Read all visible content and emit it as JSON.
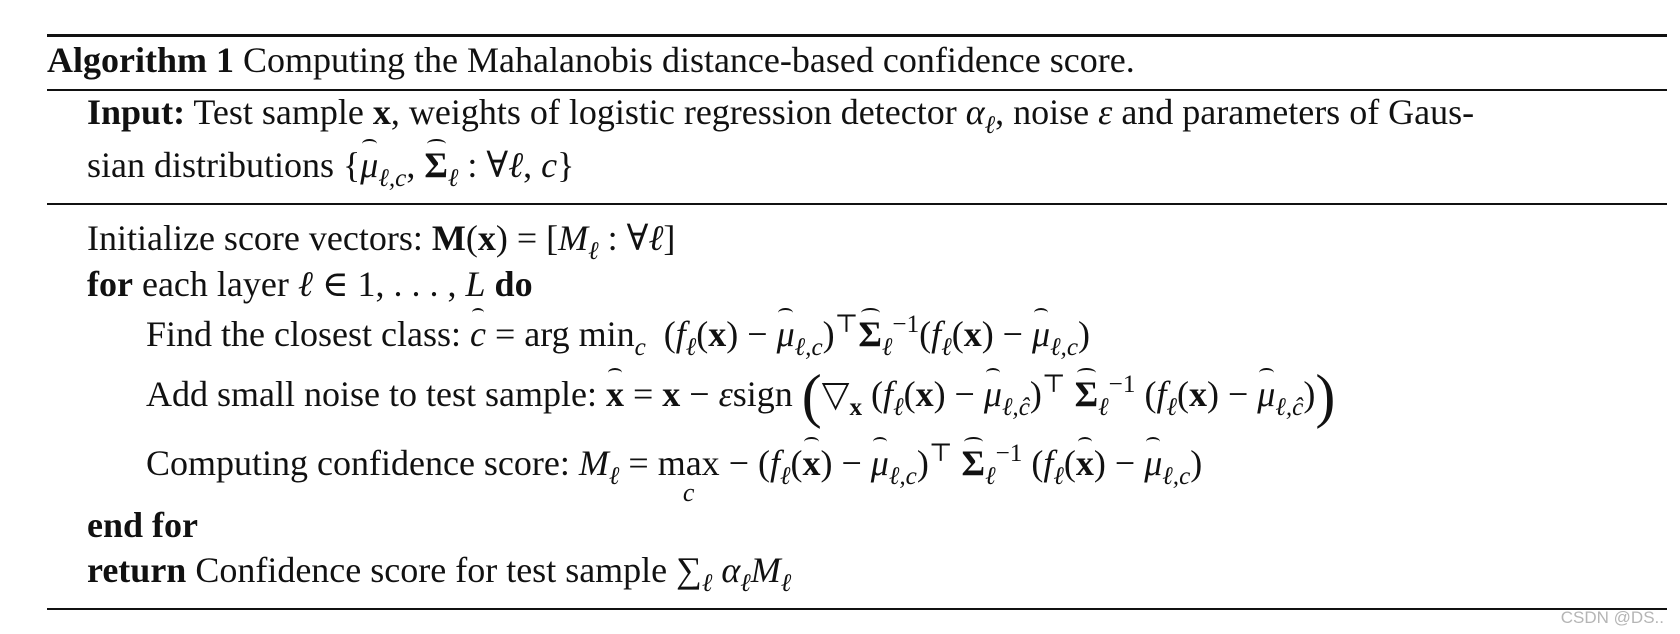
{
  "algorithm": {
    "label": "Algorithm 1",
    "caption": "Computing the Mahalanobis distance-based confidence score."
  },
  "input": {
    "label": "Input:",
    "text1": "Test sample",
    "x": "x",
    "text2": ", weights of logistic regression detector",
    "alpha": "α",
    "ell": "ℓ",
    "text3": ", noise",
    "eps": "ε",
    "text4": "and parameters of Gaus-",
    "line2_text": "sian distributions"
  },
  "body": {
    "init_text": "Initialize score vectors:",
    "for_kw": "for",
    "for_text": "each layer",
    "do_kw": "do",
    "find_text": "Find the closest class:",
    "noise_text": "Add small noise to test sample:",
    "conf_text": "Computing confidence score:",
    "end_for_kw": "end for",
    "return_kw": "return",
    "return_text": "Confidence score for test sample"
  },
  "watermark": "CSDN @DS.."
}
